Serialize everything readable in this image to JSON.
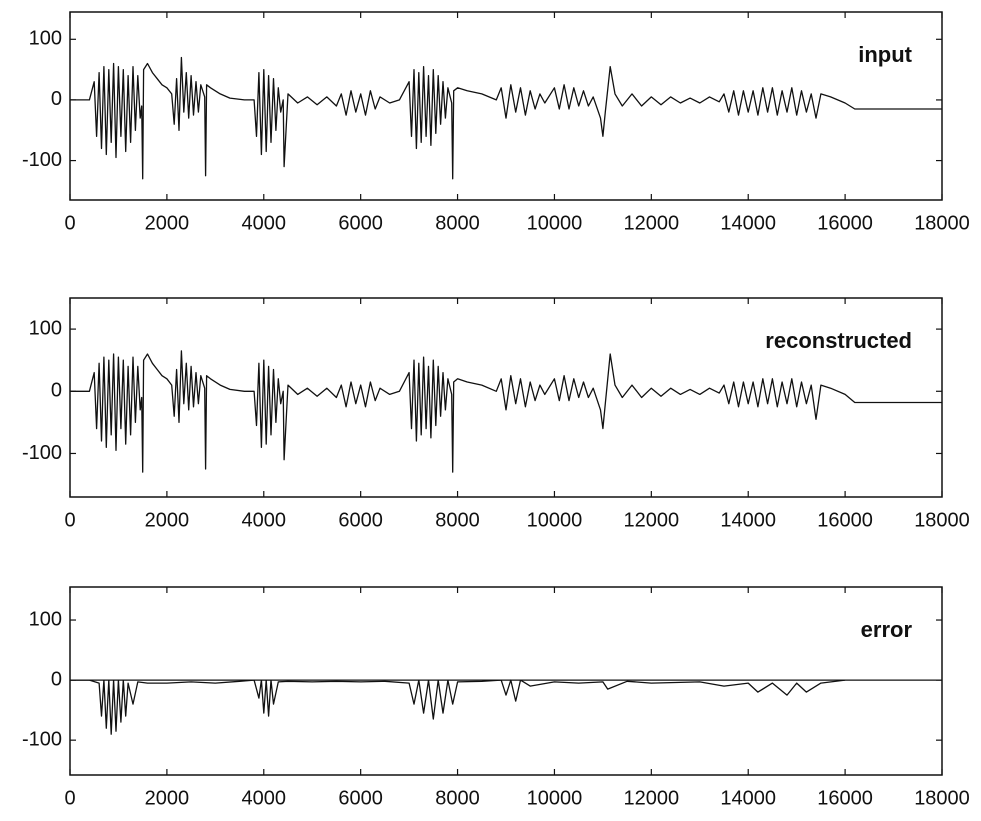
{
  "chart_data": [
    {
      "type": "line",
      "annotation": "input",
      "color": "#111111",
      "x": [
        0,
        400,
        500,
        550,
        600,
        650,
        700,
        750,
        800,
        850,
        900,
        950,
        1000,
        1050,
        1100,
        1150,
        1200,
        1250,
        1300,
        1350,
        1400,
        1450,
        1480,
        1500,
        1520,
        1600,
        1700,
        1800,
        1900,
        2000,
        2100,
        2150,
        2200,
        2250,
        2300,
        2350,
        2400,
        2450,
        2500,
        2550,
        2600,
        2650,
        2700,
        2780,
        2800,
        2820,
        2900,
        3100,
        3300,
        3600,
        3800,
        3850,
        3900,
        3950,
        4000,
        4050,
        4100,
        4150,
        4200,
        4250,
        4300,
        4350,
        4400,
        4420,
        4500,
        4700,
        4900,
        5100,
        5300,
        5500,
        5600,
        5700,
        5800,
        5900,
        6000,
        6100,
        6200,
        6300,
        6400,
        6600,
        6800,
        7000,
        7050,
        7100,
        7150,
        7200,
        7250,
        7300,
        7350,
        7400,
        7450,
        7500,
        7550,
        7600,
        7650,
        7700,
        7750,
        7800,
        7880,
        7900,
        7920,
        8000,
        8200,
        8500,
        8800,
        8900,
        9000,
        9100,
        9200,
        9300,
        9400,
        9500,
        9600,
        9700,
        9800,
        10000,
        10100,
        10200,
        10300,
        10400,
        10500,
        10600,
        10700,
        10800,
        10950,
        11000,
        11050,
        11150,
        11250,
        11400,
        11600,
        11800,
        12000,
        12200,
        12400,
        12600,
        12800,
        13000,
        13200,
        13400,
        13500,
        13600,
        13700,
        13800,
        13900,
        14000,
        14100,
        14200,
        14300,
        14400,
        14500,
        14600,
        14700,
        14800,
        14900,
        15000,
        15100,
        15200,
        15300,
        15400,
        15500,
        15700,
        16000,
        16200,
        18000
      ],
      "values": [
        0,
        0,
        30,
        -60,
        45,
        -80,
        55,
        -90,
        50,
        -70,
        60,
        -95,
        55,
        -60,
        50,
        -85,
        40,
        -70,
        55,
        -50,
        40,
        -30,
        -10,
        -130,
        50,
        60,
        45,
        35,
        25,
        20,
        10,
        -40,
        35,
        -50,
        70,
        -20,
        45,
        -30,
        40,
        -25,
        30,
        -20,
        25,
        5,
        -125,
        25,
        20,
        10,
        3,
        0,
        0,
        -60,
        45,
        -90,
        50,
        -85,
        40,
        -70,
        35,
        -50,
        20,
        -20,
        0,
        -110,
        10,
        -5,
        5,
        -8,
        5,
        -10,
        10,
        -25,
        15,
        -20,
        10,
        -25,
        15,
        -15,
        5,
        -5,
        0,
        30,
        -60,
        50,
        -80,
        45,
        -70,
        55,
        -60,
        40,
        -75,
        50,
        -55,
        40,
        -40,
        30,
        -30,
        20,
        -5,
        -130,
        15,
        20,
        15,
        10,
        0,
        20,
        -30,
        25,
        -20,
        20,
        -25,
        15,
        -15,
        10,
        -5,
        20,
        -15,
        25,
        -15,
        20,
        -10,
        15,
        -10,
        5,
        -30,
        -60,
        -20,
        55,
        10,
        -10,
        10,
        -10,
        5,
        -8,
        5,
        -5,
        3,
        -5,
        5,
        -3,
        10,
        -20,
        15,
        -25,
        15,
        -20,
        15,
        -25,
        20,
        -20,
        20,
        -25,
        15,
        -20,
        20,
        -25,
        15,
        -20,
        10,
        -30,
        10,
        5,
        -5,
        -15,
        -15
      ],
      "xlim": [
        0,
        18000
      ],
      "ylim": [
        -165,
        145
      ],
      "xticks": [
        0,
        2000,
        4000,
        6000,
        8000,
        10000,
        12000,
        14000,
        16000,
        18000
      ],
      "yticks": [
        -100,
        0,
        100
      ]
    },
    {
      "type": "line",
      "annotation": "reconstructed",
      "color": "#111111",
      "x": [
        0,
        400,
        500,
        550,
        600,
        650,
        700,
        750,
        800,
        850,
        900,
        950,
        1000,
        1050,
        1100,
        1150,
        1200,
        1250,
        1300,
        1350,
        1400,
        1450,
        1480,
        1500,
        1520,
        1600,
        1700,
        1800,
        1900,
        2000,
        2100,
        2150,
        2200,
        2250,
        2300,
        2350,
        2400,
        2450,
        2500,
        2550,
        2600,
        2650,
        2700,
        2780,
        2800,
        2820,
        2900,
        3100,
        3300,
        3600,
        3800,
        3850,
        3900,
        3950,
        4000,
        4050,
        4100,
        4150,
        4200,
        4250,
        4300,
        4350,
        4400,
        4420,
        4500,
        4700,
        4900,
        5100,
        5300,
        5500,
        5600,
        5700,
        5800,
        5900,
        6000,
        6100,
        6200,
        6300,
        6400,
        6600,
        6800,
        7000,
        7050,
        7100,
        7150,
        7200,
        7250,
        7300,
        7350,
        7400,
        7450,
        7500,
        7550,
        7600,
        7650,
        7700,
        7750,
        7800,
        7880,
        7900,
        7920,
        8000,
        8200,
        8500,
        8800,
        8900,
        9000,
        9100,
        9200,
        9300,
        9400,
        9500,
        9600,
        9700,
        9800,
        10000,
        10100,
        10200,
        10300,
        10400,
        10500,
        10600,
        10700,
        10800,
        10950,
        11000,
        11050,
        11150,
        11250,
        11400,
        11600,
        11800,
        12000,
        12200,
        12400,
        12600,
        12800,
        13000,
        13200,
        13400,
        13500,
        13600,
        13700,
        13800,
        13900,
        14000,
        14100,
        14200,
        14300,
        14400,
        14500,
        14600,
        14700,
        14800,
        14900,
        15000,
        15100,
        15200,
        15300,
        15400,
        15500,
        15700,
        16000,
        16200,
        18000
      ],
      "values": [
        0,
        0,
        30,
        -60,
        45,
        -80,
        55,
        -90,
        50,
        -70,
        60,
        -95,
        55,
        -60,
        50,
        -85,
        40,
        -70,
        55,
        -50,
        40,
        -30,
        -10,
        -130,
        50,
        60,
        45,
        35,
        25,
        20,
        10,
        -40,
        35,
        -50,
        65,
        -20,
        45,
        -30,
        40,
        -25,
        30,
        -20,
        25,
        5,
        -125,
        25,
        20,
        10,
        3,
        0,
        0,
        -55,
        45,
        -90,
        50,
        -85,
        40,
        -70,
        35,
        -50,
        20,
        -20,
        0,
        -110,
        10,
        -5,
        5,
        -8,
        5,
        -10,
        10,
        -25,
        15,
        -20,
        10,
        -25,
        15,
        -15,
        5,
        -5,
        0,
        30,
        -60,
        50,
        -80,
        45,
        -70,
        55,
        -60,
        40,
        -75,
        50,
        -55,
        40,
        -40,
        30,
        -30,
        20,
        -5,
        -130,
        15,
        20,
        15,
        10,
        0,
        20,
        -30,
        25,
        -20,
        20,
        -25,
        15,
        -15,
        10,
        -5,
        20,
        -15,
        25,
        -15,
        20,
        -10,
        15,
        -10,
        5,
        -30,
        -60,
        -20,
        60,
        10,
        -10,
        10,
        -10,
        5,
        -8,
        5,
        -5,
        3,
        -5,
        5,
        -3,
        10,
        -20,
        15,
        -25,
        15,
        -20,
        15,
        -25,
        20,
        -20,
        20,
        -25,
        15,
        -20,
        20,
        -25,
        15,
        -20,
        10,
        -45,
        10,
        5,
        -5,
        -18,
        -18
      ],
      "xlim": [
        0,
        18000
      ],
      "ylim": [
        -170,
        150
      ],
      "xticks": [
        0,
        2000,
        4000,
        6000,
        8000,
        10000,
        12000,
        14000,
        16000,
        18000
      ],
      "yticks": [
        -100,
        0,
        100
      ]
    },
    {
      "type": "line",
      "annotation": "error",
      "color": "#111111",
      "x": [
        0,
        400,
        600,
        650,
        700,
        750,
        800,
        850,
        900,
        950,
        1000,
        1050,
        1100,
        1150,
        1200,
        1300,
        1400,
        1600,
        2000,
        2500,
        3000,
        3500,
        3800,
        3900,
        3950,
        4000,
        4050,
        4100,
        4150,
        4200,
        4300,
        4500,
        5000,
        5500,
        6000,
        6500,
        7000,
        7100,
        7200,
        7300,
        7400,
        7500,
        7600,
        7700,
        7800,
        7900,
        8000,
        8500,
        8900,
        9000,
        9100,
        9200,
        9300,
        9500,
        10000,
        10500,
        11000,
        11100,
        11500,
        12000,
        13000,
        13500,
        14000,
        14200,
        14500,
        14800,
        15000,
        15200,
        15500,
        16000
      ],
      "values": [
        0,
        0,
        -5,
        -60,
        0,
        -80,
        0,
        -90,
        0,
        -85,
        0,
        -70,
        0,
        -60,
        -5,
        -40,
        -3,
        -5,
        -5,
        -3,
        -5,
        -2,
        0,
        -30,
        0,
        -55,
        0,
        -60,
        0,
        -40,
        -3,
        -2,
        -3,
        -2,
        -3,
        -2,
        -5,
        -40,
        0,
        -55,
        0,
        -65,
        0,
        -55,
        0,
        -40,
        -3,
        -2,
        0,
        -25,
        0,
        -35,
        0,
        -10,
        -3,
        -5,
        -3,
        -15,
        -2,
        -5,
        -3,
        -10,
        -5,
        -20,
        -5,
        -25,
        -5,
        -20,
        -5,
        0
      ],
      "xlim": [
        0,
        18000
      ],
      "ylim": [
        -158,
        155
      ],
      "xticks": [
        0,
        2000,
        4000,
        6000,
        8000,
        10000,
        12000,
        14000,
        16000,
        18000
      ],
      "yticks": [
        -100,
        0,
        100
      ]
    }
  ]
}
